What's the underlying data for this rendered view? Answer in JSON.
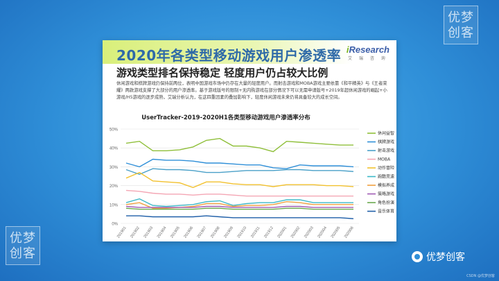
{
  "watermark": {
    "line1": "优梦",
    "line2": "创客"
  },
  "slide": {
    "title": "2020年各类型移动游戏用户渗透率",
    "subtitle": "游戏类型排名保持稳定 轻度用户仍占较大比例",
    "logo_brand_prefix": "i",
    "logo_brand": "Research",
    "logo_sub": "艾 瑞 咨 询",
    "paragraph": "休闲游戏和棋牌游戏仍保持前两位，表明中国游戏市场中仍存在大量的轻度用户。而射击游戏和MOBA游戏主要依靠《和平精英》与《王者荣耀》两款游戏支撑了大部分的用户渗透率。基于游戏版号的限制+无内购游戏在部分情况下可以无需申请版号+2019年超休闲游戏的崛起+小游戏/H5游戏的逐步成熟，艾瑞分析认为，在这四重因素的叠加影响下，轻度休闲游戏未来仍将具备较大的成长空间。"
  },
  "chart_data": {
    "type": "line",
    "title": "UserTracker-2019-2020H1各类型移动游戏用户渗透率分布",
    "xlabel": "",
    "ylabel": "",
    "ylim": [
      0,
      50
    ],
    "yticks": [
      "0%",
      "10%",
      "20%",
      "30%",
      "40%",
      "50%"
    ],
    "categories": [
      "201901",
      "201902",
      "201903",
      "201904",
      "201905",
      "201906",
      "201907",
      "201908",
      "201909",
      "201910",
      "201911",
      "201912",
      "202001",
      "202002",
      "202003",
      "202004",
      "202005",
      "202006"
    ],
    "series": [
      {
        "name": "休闲益智",
        "color": "#8fbf3a",
        "values": [
          42.5,
          43.5,
          38.5,
          38.5,
          39,
          40.5,
          44,
          45,
          41,
          41,
          40,
          38,
          43.5,
          43,
          42.5,
          42,
          41.5,
          41.5
        ]
      },
      {
        "name": "棋牌游戏",
        "color": "#2f8fd8",
        "values": [
          32,
          30,
          34,
          33.5,
          33.5,
          33,
          32,
          32,
          31.5,
          31,
          31,
          29.5,
          29,
          31,
          30.5,
          30.5,
          30.5,
          30
        ]
      },
      {
        "name": "射击游戏",
        "color": "#4aa0c8",
        "values": [
          28.5,
          26,
          29,
          28.5,
          28.5,
          28,
          27,
          27,
          27.5,
          28,
          28,
          28,
          28.5,
          28.5,
          28,
          28,
          28,
          27.5
        ]
      },
      {
        "name": "MOBA",
        "color": "#f4a6b4",
        "values": [
          17.5,
          17,
          16,
          15.5,
          15.5,
          15,
          15.5,
          15.5,
          15,
          14.5,
          14.5,
          14.5,
          14.5,
          14.5,
          14.5,
          14.5,
          14.5,
          14.5
        ]
      },
      {
        "name": "动作冒险",
        "color": "#f2c12e",
        "values": [
          24,
          27,
          22.5,
          22,
          21.5,
          19,
          22,
          22,
          21,
          20.5,
          20.5,
          19.5,
          20.5,
          20.5,
          20.5,
          20,
          20,
          19.5
        ]
      },
      {
        "name": "跑酷竞速",
        "color": "#3cb8c8",
        "values": [
          11,
          13,
          9.5,
          9,
          9.5,
          10,
          11.5,
          12,
          9.5,
          10.5,
          11,
          11,
          12.5,
          12.5,
          11,
          11,
          11,
          11
        ]
      },
      {
        "name": "模拟养成",
        "color": "#f0a040",
        "values": [
          10,
          11,
          8,
          8,
          8.5,
          9,
          10.5,
          10.5,
          9,
          9.5,
          9.5,
          10,
          11.5,
          11,
          10,
          10,
          10,
          10
        ]
      },
      {
        "name": "策略游戏",
        "color": "#a05ab4",
        "values": [
          9,
          8.5,
          8.5,
          8.5,
          8.5,
          8.5,
          9,
          9,
          8.5,
          8.5,
          8.5,
          8.5,
          9,
          9,
          8.5,
          8.5,
          8.5,
          8.5
        ]
      },
      {
        "name": "角色扮演",
        "color": "#6aa84f",
        "values": [
          8,
          7.5,
          7.5,
          7.5,
          7.5,
          7.5,
          8,
          8,
          7.5,
          7.5,
          7.5,
          7.5,
          8,
          8,
          7.5,
          7.5,
          7.5,
          7.5
        ]
      },
      {
        "name": "音乐体育",
        "color": "#1f5fa8",
        "values": [
          4,
          4,
          3.5,
          3.5,
          3.5,
          3.5,
          4,
          3.5,
          3,
          3,
          3,
          3,
          3,
          3,
          3,
          3,
          3,
          2.5
        ]
      }
    ]
  },
  "badge": {
    "text": "优梦创客"
  },
  "credit": {
    "text": "CSDN @优梦创客"
  }
}
